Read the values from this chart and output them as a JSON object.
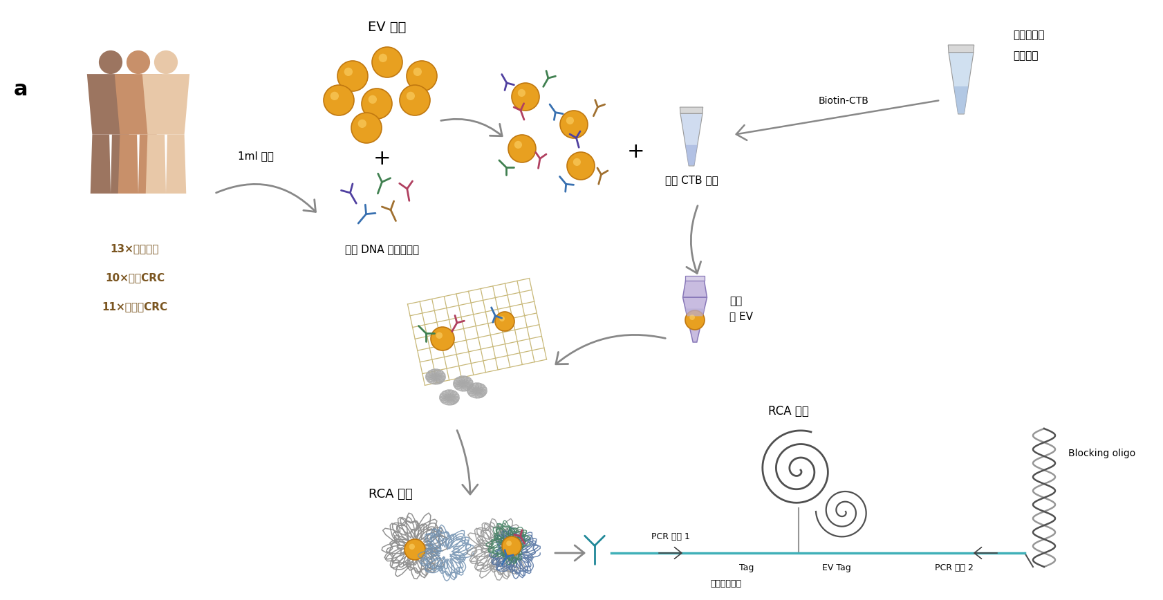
{
  "title_label": "a",
  "bg_color": "#ffffff",
  "labels": {
    "ev_sample": "EV 样品",
    "serum_1ml": "1ml 血清",
    "dna_antibody": "带有 DNA 标签的抗体",
    "ctb_coated": "涂有 CTB 的孔",
    "biotin_ctb": "Biotin-CTB",
    "strep_coated_line1": "涂有链霉亲",
    "strep_coated_line2": "和素的孔",
    "captured_ev_line1": "捕获",
    "captured_ev_line2": "的 EV",
    "rca_product1": "RCA 产物",
    "rca_product2": "RCA 产物",
    "pcr_primer1": "PCR 引物 1",
    "pcr_primer2": "PCR 引物 2",
    "protein_tag": "蛋白标签分子",
    "tag": "Tag",
    "ev_tag": "EV Tag",
    "blocking_oligo": "Blocking oligo",
    "people_labels": [
      "13×健康对照",
      "10×原发CRC",
      "11×肝转移CRC"
    ]
  },
  "people_colors": [
    "#9c7560",
    "#c8906a",
    "#e8c8a8"
  ],
  "ev_color": "#e8a020",
  "ev_edge": "#c07810",
  "ab_colors": [
    "#5040a0",
    "#3870b0",
    "#408050",
    "#b04060",
    "#a07030"
  ],
  "arrow_color": "#888888",
  "tube_body": "#d0dcf0",
  "tube_liquid": "#a8b8e0",
  "tube_cap": "#d8d8d8",
  "flask_body": "#c8bce0",
  "flask_edge": "#8878b8",
  "grid_color": "#c8b878",
  "dna_tangle_color": "#909090",
  "rca_colors": [
    "#909090",
    "#80a0c0",
    "#80b090",
    "#c09060",
    "#6080b0",
    "#c06080"
  ],
  "helix_color": "#606060",
  "bottom_line_color": "#40b0b8"
}
